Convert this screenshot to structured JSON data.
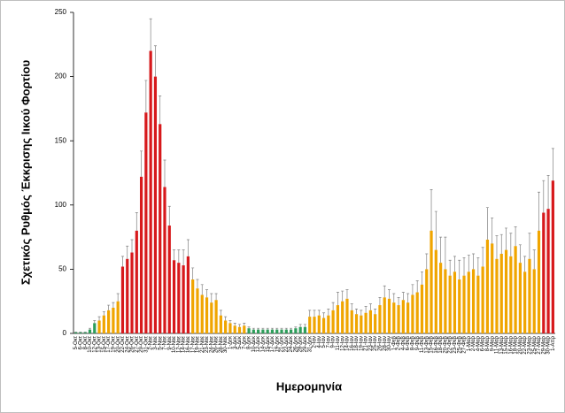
{
  "chart_data": {
    "type": "bar",
    "ylabel": "Σχετικός Ρυθμός Έκκρισης Ιικού Φορτίου",
    "xlabel": "Ημερομηνία",
    "categories": [
      "5-Οκτ",
      "6-Οκτ",
      "8-Οκτ",
      "10-Οκτ",
      "12-Οκτ",
      "13-Οκτ",
      "15-Οκτ",
      "17-Οκτ",
      "19-Οκτ",
      "20-Οκτ",
      "22-Οκτ",
      "24-Οκτ",
      "26-Οκτ",
      "27-Οκτ",
      "29-Οκτ",
      "31-Οκτ",
      "2-Νοε",
      "3-Νοε",
      "5-Νοε",
      "7-Νοε",
      "9-Νοε",
      "10-Νοε",
      "12-Νοε",
      "14-Νοε",
      "16-Νοε",
      "17-Νοε",
      "19-Νοε",
      "21-Νοε",
      "23-Νοε",
      "24-Νοε",
      "26-Νοε",
      "28-Νοε",
      "30-Νοε",
      "1-Δεκ",
      "3-Δεκ",
      "5-Δεκ",
      "7-Δεκ",
      "8-Δεκ",
      "10-Δεκ",
      "12-Δεκ",
      "14-Δεκ",
      "15-Δεκ",
      "17-Δεκ",
      "19-Δεκ",
      "21-Δεκ",
      "22-Δεκ",
      "24-Δεκ",
      "26-Δεκ",
      "28-Δεκ",
      "29-Δεκ",
      "31-Δεκ",
      "2-Ιαν",
      "4-Ιαν",
      "5-Ιαν",
      "7-Ιαν",
      "9-Ιαν",
      "11-Ιαν",
      "12-Ιαν",
      "14-Ιαν",
      "16-Ιαν",
      "18-Ιαν",
      "19-Ιαν",
      "21-Ιαν",
      "23-Ιαν",
      "25-Ιαν",
      "26-Ιαν",
      "28-Ιαν",
      "30-Ιαν",
      "1-Φεβ",
      "2-Φεβ",
      "4-Φεβ",
      "6-Φεβ",
      "8-Φεβ",
      "9-Φεβ",
      "11-Φεβ",
      "13-Φεβ",
      "15-Φεβ",
      "16-Φεβ",
      "18-Φεβ",
      "20-Φεβ",
      "22-Φεβ",
      "23-Φεβ",
      "25-Φεβ",
      "27-Φεβ",
      "1-Μαρ",
      "2-Μαρ",
      "4-Μαρ",
      "6-Μαρ",
      "8-Μαρ",
      "9-Μαρ",
      "11-Μαρ",
      "13-Μαρ",
      "15-Μαρ",
      "16-Μαρ",
      "18-Μαρ",
      "20-Μαρ",
      "22-Μαρ",
      "23-Μαρ",
      "25-Μαρ",
      "27-Μαρ",
      "29-Μαρ",
      "30-Μαρ",
      "1-Απρ"
    ],
    "values": [
      1,
      1,
      1,
      3,
      8,
      10,
      14,
      18,
      20,
      25,
      52,
      58,
      63,
      80,
      122,
      172,
      220,
      200,
      163,
      114,
      84,
      57,
      55,
      53,
      60,
      42,
      35,
      30,
      28,
      24,
      26,
      14,
      10,
      8,
      6,
      5,
      6,
      4,
      3,
      3,
      3,
      3,
      3,
      3,
      3,
      3,
      3,
      4,
      5,
      5,
      13,
      13,
      14,
      12,
      14,
      18,
      22,
      25,
      27,
      18,
      15,
      14,
      16,
      18,
      15,
      22,
      28,
      27,
      24,
      22,
      26,
      24,
      30,
      32,
      38,
      50,
      80,
      65,
      55,
      50,
      45,
      48,
      42,
      45,
      48,
      50,
      45,
      52,
      73,
      70,
      58,
      62,
      65,
      60,
      68,
      55,
      48,
      58,
      50,
      80,
      94,
      97,
      119
    ],
    "errors": [
      0,
      0,
      0,
      1,
      2,
      3,
      3,
      4,
      4,
      6,
      8,
      10,
      10,
      14,
      20,
      25,
      25,
      24,
      22,
      21,
      15,
      8,
      10,
      12,
      13,
      9,
      7,
      8,
      6,
      7,
      5,
      4,
      3,
      2,
      2,
      2,
      2,
      1,
      1,
      1,
      1,
      1,
      1,
      1,
      1,
      1,
      1,
      1,
      2,
      2,
      5,
      5,
      4,
      4,
      5,
      6,
      10,
      8,
      7,
      5,
      4,
      4,
      5,
      5,
      4,
      6,
      9,
      7,
      7,
      6,
      6,
      7,
      8,
      9,
      10,
      12,
      32,
      30,
      20,
      25,
      12,
      12,
      15,
      14,
      13,
      12,
      14,
      15,
      25,
      20,
      18,
      15,
      17,
      18,
      15,
      14,
      12,
      20,
      15,
      30,
      25,
      26,
      25
    ],
    "colors": [
      "#2e9e5b",
      "#2e9e5b",
      "#2e9e5b",
      "#2e9e5b",
      "#2e9e5b",
      "#f0a500",
      "#f0a500",
      "#f0a500",
      "#f0a500",
      "#f0a500",
      "#d7191c",
      "#d7191c",
      "#d7191c",
      "#d7191c",
      "#d7191c",
      "#d7191c",
      "#d7191c",
      "#d7191c",
      "#d7191c",
      "#d7191c",
      "#d7191c",
      "#d7191c",
      "#d7191c",
      "#d7191c",
      "#d7191c",
      "#f0a500",
      "#f0a500",
      "#f0a500",
      "#f0a500",
      "#f0a500",
      "#f0a500",
      "#f0a500",
      "#f0a500",
      "#f0a500",
      "#f0a500",
      "#f0a500",
      "#f0a500",
      "#2e9e5b",
      "#2e9e5b",
      "#2e9e5b",
      "#2e9e5b",
      "#2e9e5b",
      "#2e9e5b",
      "#2e9e5b",
      "#2e9e5b",
      "#2e9e5b",
      "#2e9e5b",
      "#2e9e5b",
      "#2e9e5b",
      "#2e9e5b",
      "#f0a500",
      "#f0a500",
      "#f0a500",
      "#f0a500",
      "#f0a500",
      "#f0a500",
      "#f0a500",
      "#f0a500",
      "#f0a500",
      "#f0a500",
      "#f0a500",
      "#f0a500",
      "#f0a500",
      "#f0a500",
      "#f0a500",
      "#f0a500",
      "#f0a500",
      "#f0a500",
      "#f0a500",
      "#f0a500",
      "#f0a500",
      "#f0a500",
      "#f0a500",
      "#f0a500",
      "#f0a500",
      "#f0a500",
      "#f0a500",
      "#f0a500",
      "#f0a500",
      "#f0a500",
      "#f0a500",
      "#f0a500",
      "#f0a500",
      "#f0a500",
      "#f0a500",
      "#f0a500",
      "#f0a500",
      "#f0a500",
      "#f0a500",
      "#f0a500",
      "#f0a500",
      "#f0a500",
      "#f0a500",
      "#f0a500",
      "#f0a500",
      "#f0a500",
      "#f0a500",
      "#f0a500",
      "#f0a500",
      "#f0a500",
      "#d7191c",
      "#d7191c",
      "#d7191c"
    ],
    "error_color": "#808080",
    "ylim": [
      0,
      250
    ],
    "yticks": [
      0,
      50,
      100,
      150,
      200,
      250
    ]
  }
}
